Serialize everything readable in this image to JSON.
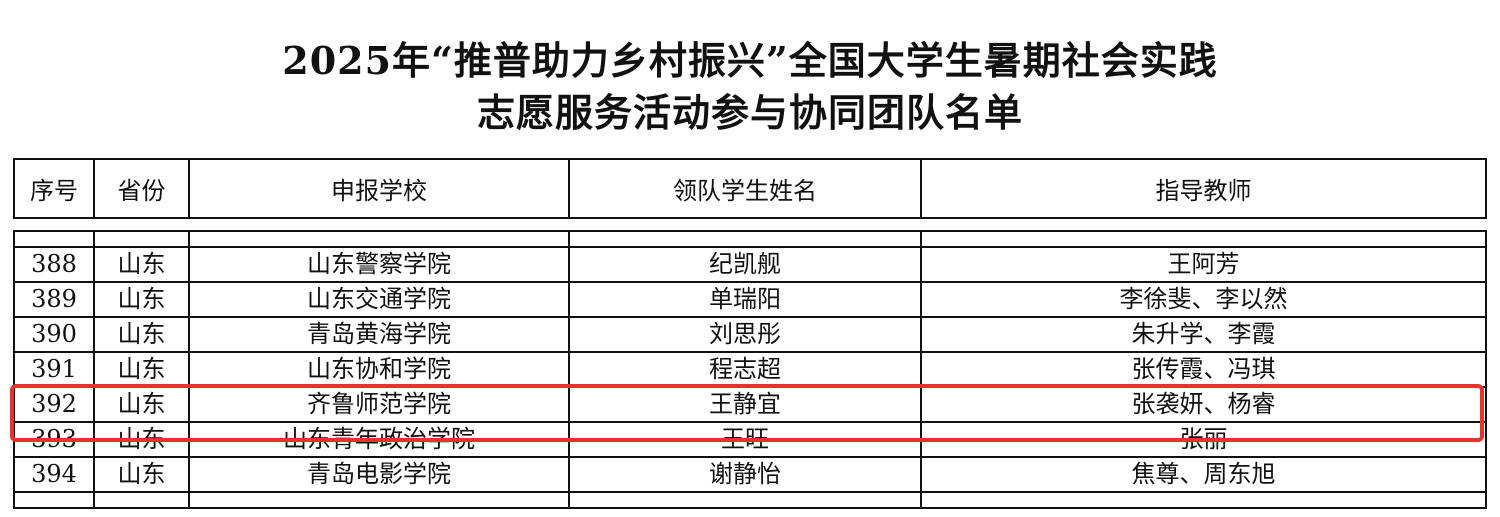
{
  "title": {
    "line1": "2025年“推普助力乡村振兴”全国大学生暑期社会实践",
    "line2": "志愿服务活动参与协同团队名单"
  },
  "table": {
    "headers": [
      "序号",
      "省份",
      "申报学校",
      "领队学生姓名",
      "指导教师"
    ],
    "rows": [
      [
        "388",
        "山东",
        "山东警察学院",
        "纪凯舰",
        "王阿芳"
      ],
      [
        "389",
        "山东",
        "山东交通学院",
        "单瑞阳",
        "李徐斐、李以然"
      ],
      [
        "390",
        "山东",
        "青岛黄海学院",
        "刘思彤",
        "朱升学、李霞"
      ],
      [
        "391",
        "山东",
        "山东协和学院",
        "程志超",
        "张传霞、冯琪"
      ],
      [
        "392",
        "山东",
        "齐鲁师范学院",
        "王静宜",
        "张袭妍、杨睿"
      ],
      [
        "393",
        "山东",
        "山东青年政治学院",
        "王旺",
        "张丽"
      ],
      [
        "394",
        "山东",
        "青岛电影学院",
        "谢静怡",
        "焦尊、周东旭"
      ]
    ],
    "highlighted_row": "392",
    "highlight_color": "#e8322e"
  }
}
